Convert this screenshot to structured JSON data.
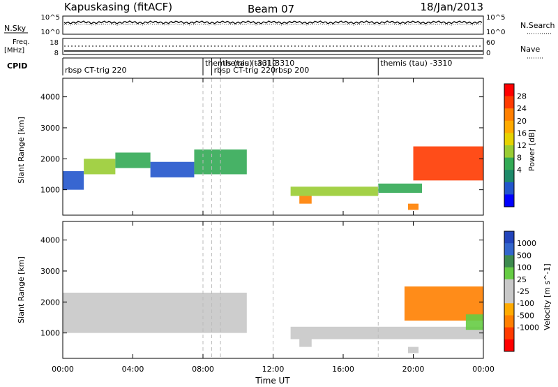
{
  "header": {
    "station": "Kapuskasing (fitACF)",
    "beam": "Beam 07",
    "date": "18/Jan/2013"
  },
  "time_axis": {
    "label": "Time UT",
    "range_hours": [
      0,
      24
    ],
    "tick_labels": [
      "00:00",
      "04:00",
      "08:00",
      "12:00",
      "16:00",
      "20:00",
      "00:00"
    ],
    "tick_hours": [
      0,
      4,
      8,
      12,
      16,
      20,
      24
    ]
  },
  "sky_panel": {
    "left_label": "N.Sky",
    "right_label": "N.Search",
    "left_ticks": [
      "10^5",
      "10^0"
    ],
    "right_ticks": [
      "10^5",
      "10^0"
    ]
  },
  "freq_panel": {
    "left_label_top": "Freq.",
    "left_label_unit": "[MHz]",
    "right_label": "Nave",
    "left_ticks": [
      "18",
      "8"
    ],
    "right_ticks": [
      "60",
      "0"
    ]
  },
  "cpid": {
    "label": "CPID",
    "programs": [
      {
        "name": "rbsp CT-trig 220",
        "start": 0.0
      },
      {
        "name": "themis (tau) -3310",
        "start": 8.0
      },
      {
        "name": "rbsp CT-trig 220",
        "start": 8.5
      },
      {
        "name": "themis (tau) -3310",
        "start": 9.0
      },
      {
        "name": "rbsp 200",
        "start": 12.0
      },
      {
        "name": "themis (tau) -3310",
        "start": 18.0
      }
    ],
    "boundaries_hours": [
      8.0,
      8.5,
      9.0,
      12.0,
      18.0
    ]
  },
  "chart_data": [
    {
      "type": "heatmap",
      "title": "Power",
      "ylabel": "Slant Range [km]",
      "xlabel": "Time UT",
      "ylim": [
        180,
        4600
      ],
      "yticks": [
        1000,
        2000,
        3000,
        4000
      ],
      "colorbar": {
        "label": "Power [dB]",
        "ticks": [
          "28",
          "24",
          "20",
          "16",
          "12",
          "8",
          "4"
        ],
        "colors": [
          "#ff0000",
          "#ff3a00",
          "#ff7f00",
          "#ffaa00",
          "#e6d200",
          "#99cc33",
          "#33aa55",
          "#1e8a6a",
          "#2255cc",
          "#0000ff"
        ]
      },
      "regions": [
        {
          "t0": 0.0,
          "t1": 1.2,
          "r_lo": 1000,
          "r_hi": 1600,
          "color": "#2255cc"
        },
        {
          "t0": 1.2,
          "t1": 3.0,
          "r_lo": 1500,
          "r_hi": 2000,
          "color": "#99cc33"
        },
        {
          "t0": 3.0,
          "t1": 5.0,
          "r_lo": 1700,
          "r_hi": 2200,
          "color": "#33aa55"
        },
        {
          "t0": 5.0,
          "t1": 7.5,
          "r_lo": 1400,
          "r_hi": 1900,
          "color": "#2255cc"
        },
        {
          "t0": 7.5,
          "t1": 10.5,
          "r_lo": 1500,
          "r_hi": 2300,
          "color": "#33aa55"
        },
        {
          "t0": 13.0,
          "t1": 18.0,
          "r_lo": 800,
          "r_hi": 1100,
          "color": "#99cc33"
        },
        {
          "t0": 18.0,
          "t1": 20.5,
          "r_lo": 900,
          "r_hi": 1200,
          "color": "#33aa55"
        },
        {
          "t0": 20.0,
          "t1": 24.0,
          "r_lo": 1300,
          "r_hi": 2400,
          "color": "#ff3a00"
        },
        {
          "t0": 13.5,
          "t1": 14.2,
          "r_lo": 550,
          "r_hi": 800,
          "color": "#ff7f00"
        },
        {
          "t0": 19.7,
          "t1": 20.3,
          "r_lo": 350,
          "r_hi": 550,
          "color": "#ff7f00"
        }
      ]
    },
    {
      "type": "heatmap",
      "title": "Velocity",
      "ylabel": "Slant Range [km]",
      "xlabel": "Time UT",
      "ylim": [
        180,
        4600
      ],
      "yticks": [
        1000,
        2000,
        3000,
        4000
      ],
      "colorbar": {
        "label": "Velocity [m s^-1]",
        "ticks": [
          "1000",
          "500",
          "100",
          "25",
          "-25",
          "-100",
          "-500",
          "-1000"
        ],
        "colors": [
          "#2244bb",
          "#3366cc",
          "#3d8a4e",
          "#66cc44",
          "#c8c8c8",
          "#c8c8c8",
          "#ffaa00",
          "#ff7f00",
          "#ff3a00",
          "#ff0000"
        ]
      },
      "regions": [
        {
          "t0": 0.0,
          "t1": 10.5,
          "r_lo": 1000,
          "r_hi": 2300,
          "color": "#c8c8c8"
        },
        {
          "t0": 13.0,
          "t1": 24.0,
          "r_lo": 800,
          "r_hi": 1200,
          "color": "#c8c8c8"
        },
        {
          "t0": 19.5,
          "t1": 24.0,
          "r_lo": 1400,
          "r_hi": 2500,
          "color": "#ff7f00"
        },
        {
          "t0": 23.0,
          "t1": 24.0,
          "r_lo": 1100,
          "r_hi": 1600,
          "color": "#66cc44"
        },
        {
          "t0": 13.5,
          "t1": 14.2,
          "r_lo": 550,
          "r_hi": 800,
          "color": "#c8c8c8"
        },
        {
          "t0": 19.7,
          "t1": 20.3,
          "r_lo": 350,
          "r_hi": 550,
          "color": "#c8c8c8"
        }
      ]
    }
  ]
}
